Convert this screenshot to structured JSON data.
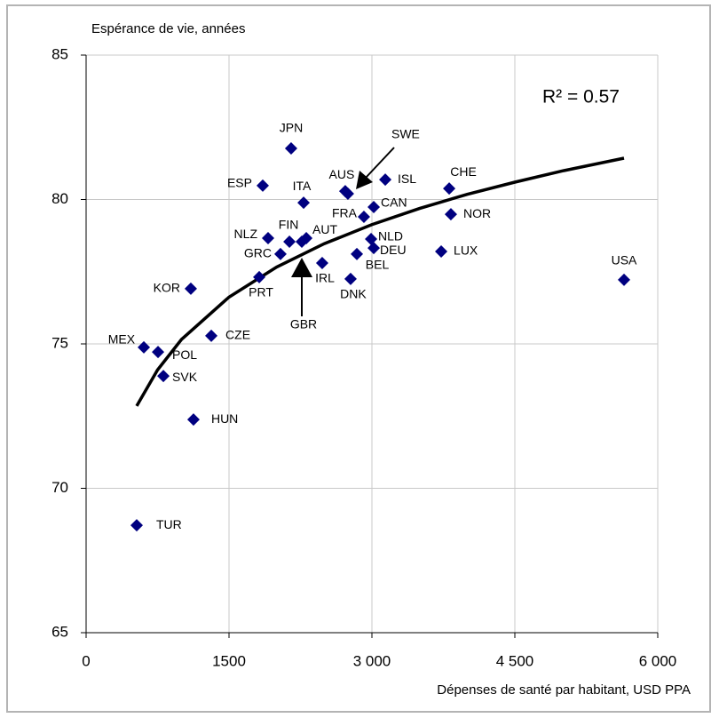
{
  "chart_data": {
    "type": "scatter",
    "title": "Espérance de vie, années",
    "x_label": "Dépenses de santé par habitant, USD PPA",
    "annotation": "R² = 0.57",
    "color": "#000080",
    "trend_color": "#000000",
    "grid": true,
    "xlim": [
      0,
      6000
    ],
    "ylim": [
      65,
      85
    ],
    "xticks": [
      0,
      1500,
      {
        "value": 3000,
        "label": "3 000"
      },
      {
        "value": 4500,
        "label": "4 500"
      },
      {
        "value": 6000,
        "label": "6 000"
      }
    ],
    "yticks": [
      65,
      70,
      75,
      80,
      85
    ],
    "points": {
      "labels": [
        "JPN",
        "ESP",
        "ITA",
        "AUS",
        "SWE",
        "ISL",
        "CHE",
        "CAN",
        "FRA",
        "NOR",
        "NLZ",
        "FIN",
        "AUT",
        "GBR",
        "GRC",
        "NLD",
        "DEU",
        "BEL",
        "LUX",
        "IRL",
        "DNK",
        "PRT",
        "KOR",
        "USA",
        "CZE",
        "MEX",
        "POL",
        "SVK",
        "HUN",
        "TUR"
      ],
      "x": [
        2152,
        1854,
        2283,
        2720,
        2748,
        3140,
        3811,
        3019,
        2916,
        3829,
        1910,
        2134,
        2311,
        2264,
        2040,
        2991,
        3019,
        2842,
        3727,
        2478,
        2776,
        1817,
        1099,
        5646,
        1314,
        606,
        755,
        811,
        1127,
        531
      ],
      "y": [
        81.77,
        80.48,
        79.89,
        80.29,
        80.2,
        80.69,
        80.38,
        79.74,
        79.4,
        79.49,
        78.66,
        78.54,
        78.66,
        78.54,
        78.11,
        78.63,
        78.32,
        78.11,
        78.2,
        77.8,
        77.25,
        77.31,
        76.91,
        77.22,
        75.28,
        74.88,
        74.72,
        73.89,
        72.38,
        68.72
      ]
    },
    "trendline": {
      "x": [
        531,
        750,
        1000,
        1500,
        2000,
        2500,
        3000,
        3500,
        4000,
        4500,
        5000,
        5646
      ],
      "y": [
        72.85,
        74.1,
        75.15,
        76.62,
        77.66,
        78.47,
        79.13,
        79.69,
        80.18,
        80.6,
        80.99,
        81.43
      ]
    }
  }
}
